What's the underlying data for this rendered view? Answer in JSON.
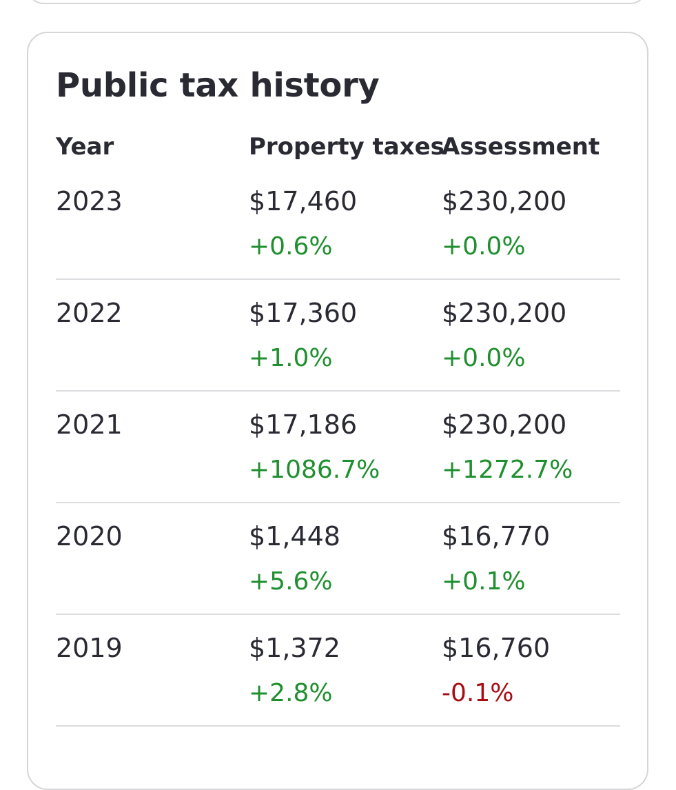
{
  "section": {
    "title": "Public tax history"
  },
  "columns": {
    "year": "Year",
    "property_taxes": "Property taxes",
    "assessment": "Assessment"
  },
  "colors": {
    "positive": "#1f8f2f",
    "negative": "#a80d14",
    "text": "#2a2a33",
    "border": "#d6d6d8"
  },
  "rows": [
    {
      "year": "2023",
      "tax": "$17,460",
      "tax_change": "+0.6%",
      "tax_change_dir": "pos",
      "assessment": "$230,200",
      "assessment_change": "+0.0%",
      "assessment_change_dir": "pos"
    },
    {
      "year": "2022",
      "tax": "$17,360",
      "tax_change": "+1.0%",
      "tax_change_dir": "pos",
      "assessment": "$230,200",
      "assessment_change": "+0.0%",
      "assessment_change_dir": "pos"
    },
    {
      "year": "2021",
      "tax": "$17,186",
      "tax_change": "+1086.7%",
      "tax_change_dir": "pos",
      "assessment": "$230,200",
      "assessment_change": "+1272.7%",
      "assessment_change_dir": "pos"
    },
    {
      "year": "2020",
      "tax": "$1,448",
      "tax_change": "+5.6%",
      "tax_change_dir": "pos",
      "assessment": "$16,770",
      "assessment_change": "+0.1%",
      "assessment_change_dir": "pos"
    },
    {
      "year": "2019",
      "tax": "$1,372",
      "tax_change": "+2.8%",
      "tax_change_dir": "pos",
      "assessment": "$16,760",
      "assessment_change": "-0.1%",
      "assessment_change_dir": "neg"
    }
  ]
}
